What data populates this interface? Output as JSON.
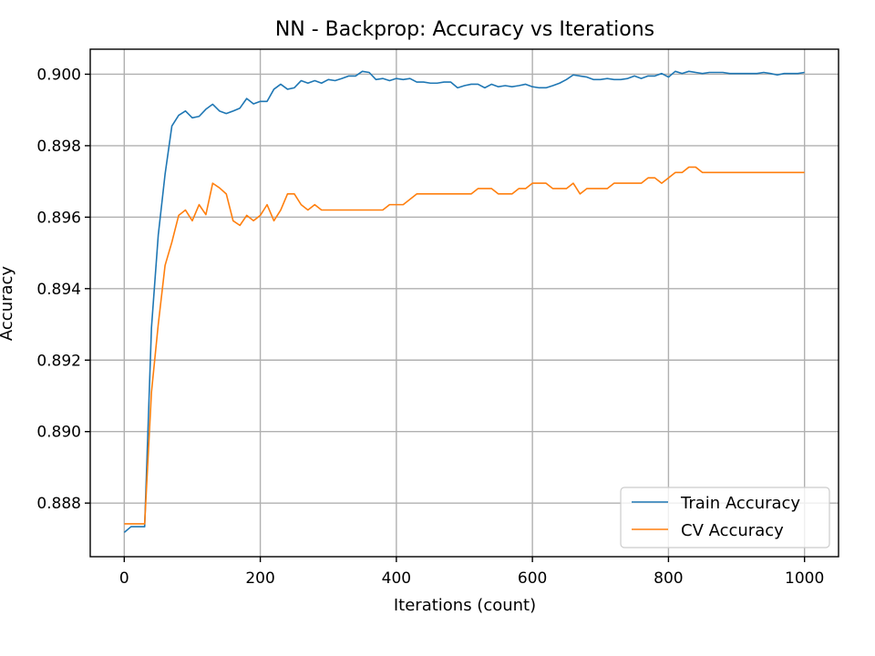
{
  "chart_data": {
    "type": "line",
    "title": "NN - Backprop: Accuracy vs Iterations",
    "xlabel": "Iterations (count)",
    "ylabel": "Accuracy",
    "xlim": [
      -50,
      1050
    ],
    "ylim": [
      0.8865,
      0.9007
    ],
    "xticks": [
      0,
      200,
      400,
      600,
      800,
      1000
    ],
    "xtick_labels": [
      "0",
      "200",
      "400",
      "600",
      "800",
      "1000"
    ],
    "yticks": [
      0.888,
      0.89,
      0.892,
      0.894,
      0.896,
      0.898,
      0.9
    ],
    "ytick_labels": [
      "0.888",
      "0.890",
      "0.892",
      "0.894",
      "0.896",
      "0.898",
      "0.900"
    ],
    "grid": true,
    "legend_position": "lower-right",
    "x": [
      0,
      10,
      20,
      30,
      40,
      50,
      60,
      70,
      80,
      90,
      100,
      110,
      120,
      130,
      140,
      150,
      160,
      170,
      180,
      190,
      200,
      210,
      220,
      230,
      240,
      250,
      260,
      270,
      280,
      290,
      300,
      310,
      320,
      330,
      340,
      350,
      360,
      370,
      380,
      390,
      400,
      410,
      420,
      430,
      440,
      450,
      460,
      470,
      480,
      490,
      500,
      510,
      520,
      530,
      540,
      550,
      560,
      570,
      580,
      590,
      600,
      610,
      620,
      630,
      640,
      650,
      660,
      670,
      680,
      690,
      700,
      710,
      720,
      730,
      740,
      750,
      760,
      770,
      780,
      790,
      800,
      810,
      820,
      830,
      840,
      850,
      860,
      870,
      880,
      890,
      900,
      910,
      920,
      930,
      940,
      950,
      960,
      970,
      980,
      990,
      1000
    ],
    "series": [
      {
        "name": "Train Accuracy",
        "color": "#1f77b4",
        "values": [
          0.88718,
          0.88734,
          0.88734,
          0.88734,
          0.8929,
          0.8955,
          0.8972,
          0.89855,
          0.89885,
          0.89897,
          0.89878,
          0.89882,
          0.89902,
          0.89916,
          0.89897,
          0.8989,
          0.89897,
          0.89905,
          0.89932,
          0.89917,
          0.89924,
          0.89924,
          0.89958,
          0.89972,
          0.89958,
          0.89962,
          0.89982,
          0.89975,
          0.89982,
          0.89975,
          0.89985,
          0.89982,
          0.89988,
          0.89995,
          0.89995,
          0.90008,
          0.90005,
          0.89985,
          0.89988,
          0.89982,
          0.89988,
          0.89985,
          0.89988,
          0.89978,
          0.89978,
          0.89975,
          0.89975,
          0.89978,
          0.89978,
          0.89962,
          0.89968,
          0.89972,
          0.89972,
          0.89962,
          0.89972,
          0.89965,
          0.89968,
          0.89965,
          0.89968,
          0.89972,
          0.89965,
          0.89962,
          0.89962,
          0.89968,
          0.89975,
          0.89985,
          0.89998,
          0.89995,
          0.89992,
          0.89985,
          0.89985,
          0.89988,
          0.89985,
          0.89985,
          0.89988,
          0.89995,
          0.89988,
          0.89995,
          0.89995,
          0.90002,
          0.89992,
          0.90008,
          0.90002,
          0.90008,
          0.90005,
          0.90002,
          0.90005,
          0.90005,
          0.90005,
          0.90002,
          0.90002,
          0.90002,
          0.90002,
          0.90002,
          0.90005,
          0.90002,
          0.89998,
          0.90002,
          0.90002,
          0.90002,
          0.90005
        ]
      },
      {
        "name": "CV Accuracy",
        "color": "#ff7f0e",
        "values": [
          0.88742,
          0.88742,
          0.88742,
          0.88742,
          0.8911,
          0.893,
          0.89465,
          0.8953,
          0.89605,
          0.8962,
          0.8959,
          0.89635,
          0.89607,
          0.89695,
          0.89682,
          0.89665,
          0.8959,
          0.89577,
          0.89605,
          0.8959,
          0.89605,
          0.89635,
          0.8959,
          0.8962,
          0.89665,
          0.89665,
          0.89635,
          0.8962,
          0.89635,
          0.8962,
          0.8962,
          0.8962,
          0.8962,
          0.8962,
          0.8962,
          0.8962,
          0.8962,
          0.8962,
          0.8962,
          0.89635,
          0.89635,
          0.89635,
          0.8965,
          0.89665,
          0.89665,
          0.89665,
          0.89665,
          0.89665,
          0.89665,
          0.89665,
          0.89665,
          0.89665,
          0.8968,
          0.8968,
          0.8968,
          0.89665,
          0.89665,
          0.89665,
          0.8968,
          0.8968,
          0.89695,
          0.89695,
          0.89695,
          0.8968,
          0.8968,
          0.8968,
          0.89695,
          0.89665,
          0.8968,
          0.8968,
          0.8968,
          0.8968,
          0.89695,
          0.89695,
          0.89695,
          0.89695,
          0.89695,
          0.8971,
          0.8971,
          0.89695,
          0.8971,
          0.89725,
          0.89725,
          0.8974,
          0.8974,
          0.89725,
          0.89725,
          0.89725,
          0.89725,
          0.89725,
          0.89725,
          0.89725,
          0.89725,
          0.89725,
          0.89725,
          0.89725,
          0.89725,
          0.89725,
          0.89725,
          0.89725,
          0.89725
        ]
      }
    ]
  }
}
